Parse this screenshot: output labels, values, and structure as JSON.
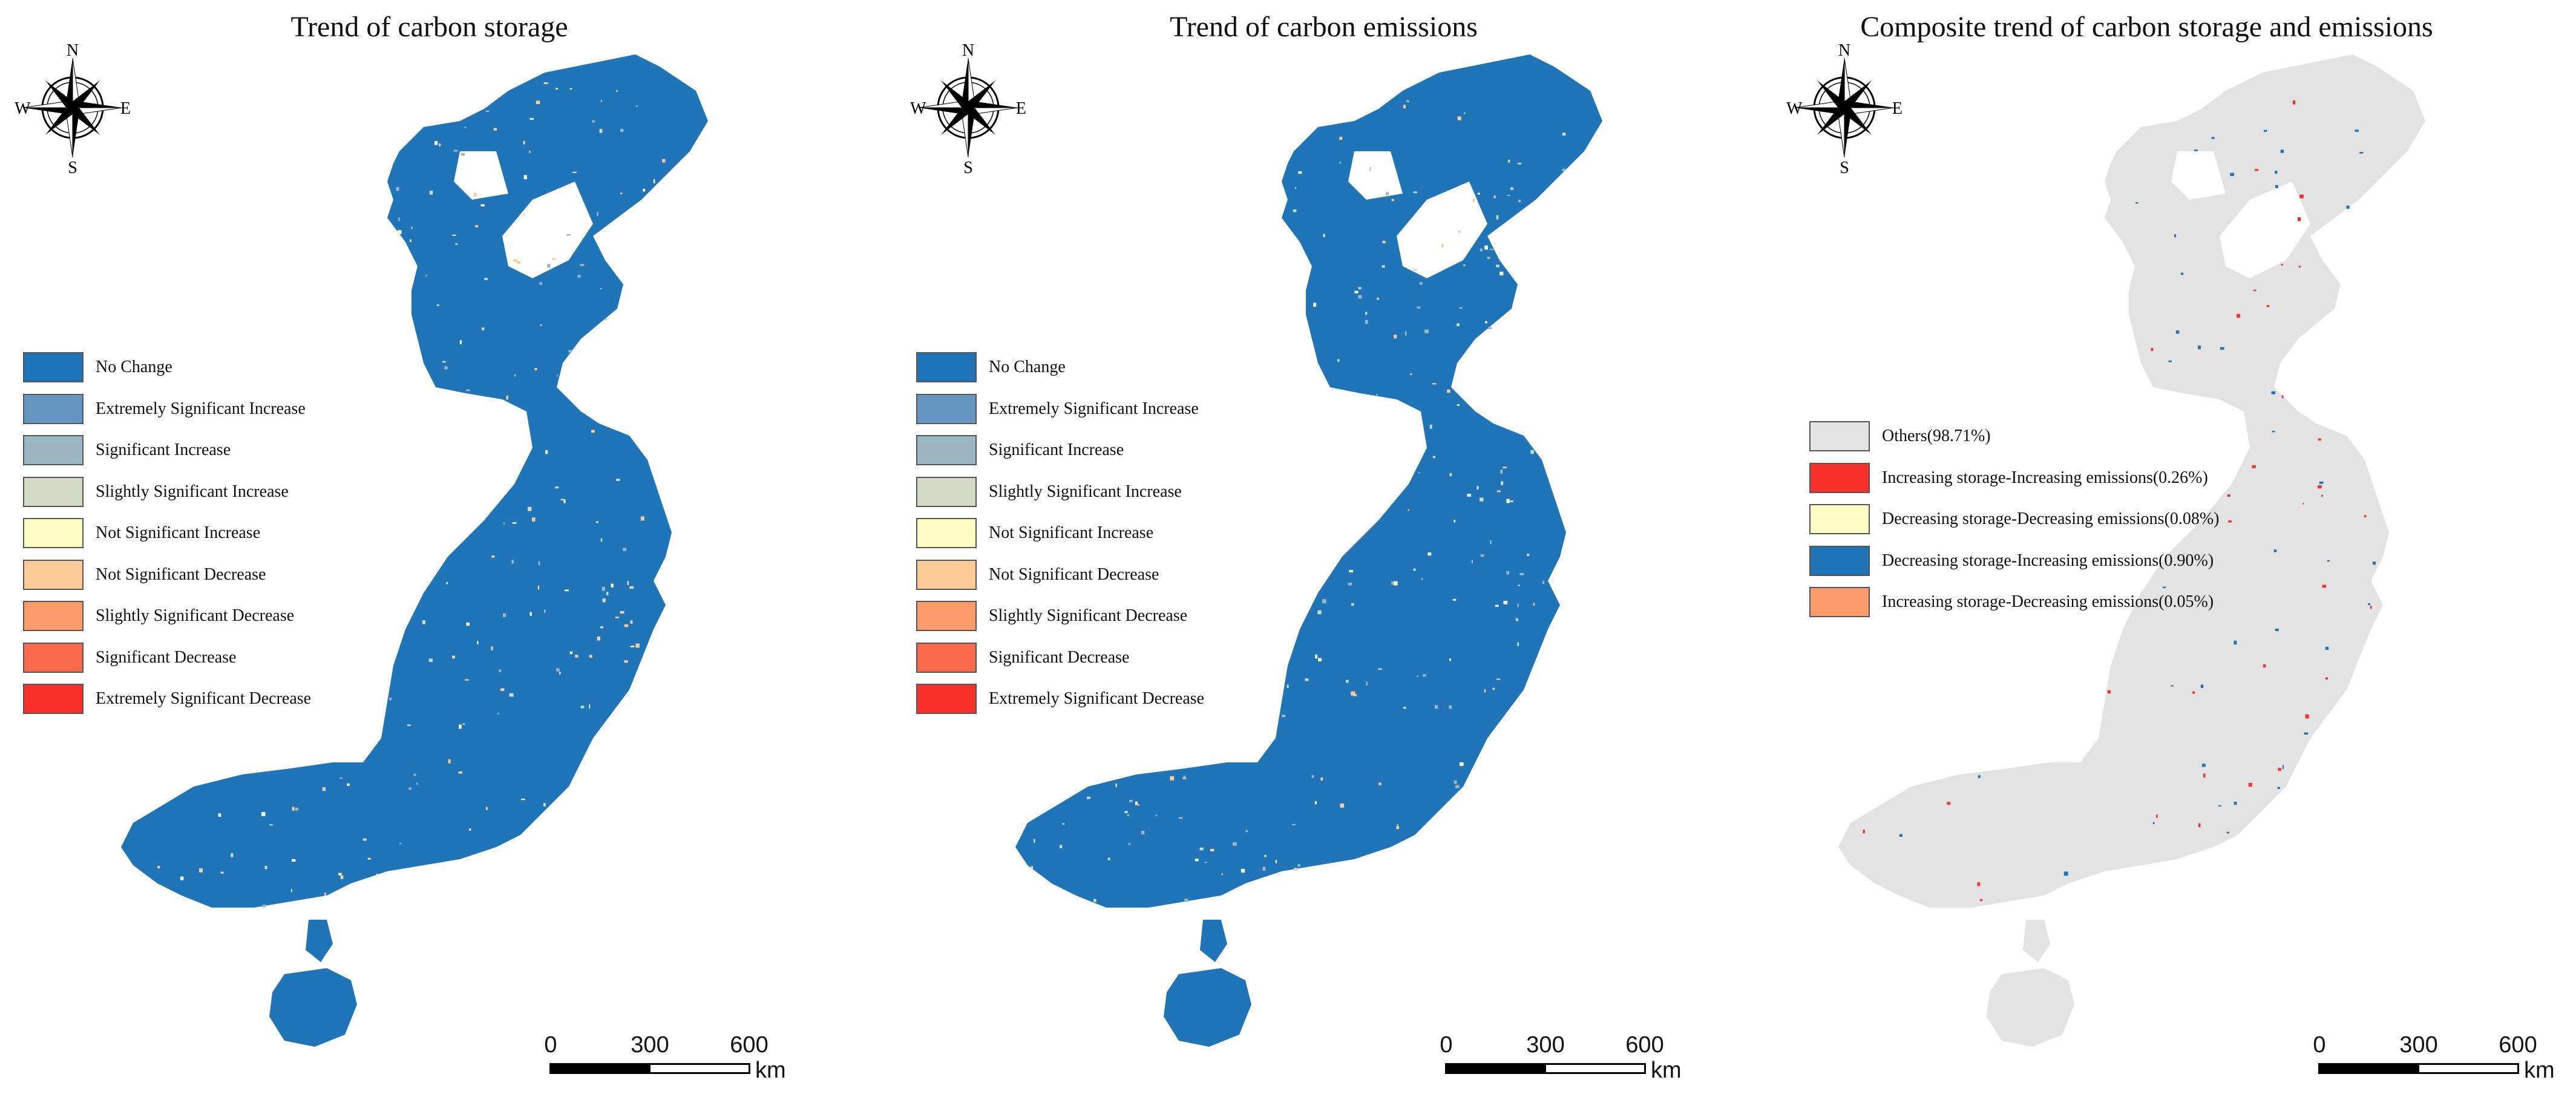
{
  "panels": [
    {
      "title": "Trend of carbon storage",
      "map_fill": "#1f75b8",
      "legend": [
        {
          "label": "No Change",
          "color": "#1f75b8"
        },
        {
          "label": "Extremely Significant Increase",
          "color": "#6697c2"
        },
        {
          "label": "Significant Increase",
          "color": "#9db6c4"
        },
        {
          "label": "Slightly Significant Increase",
          "color": "#d2dac4"
        },
        {
          "label": "Not Significant Increase",
          "color": "#fdfdc4"
        },
        {
          "label": "Not Significant Decrease",
          "color": "#fdcb97"
        },
        {
          "label": "Slightly Significant Decrease",
          "color": "#fc9c6a"
        },
        {
          "label": "Significant Decrease",
          "color": "#fb6a4a"
        },
        {
          "label": "Extremely Significant Decrease",
          "color": "#f8312a"
        }
      ]
    },
    {
      "title": "Trend of carbon emissions",
      "map_fill": "#1f75b8",
      "legend": [
        {
          "label": "No Change",
          "color": "#1f75b8"
        },
        {
          "label": "Extremely Significant Increase",
          "color": "#6697c2"
        },
        {
          "label": "Significant Increase",
          "color": "#9db6c4"
        },
        {
          "label": "Slightly Significant Increase",
          "color": "#d2dac4"
        },
        {
          "label": "Not Significant Increase",
          "color": "#fdfdc4"
        },
        {
          "label": "Not Significant Decrease",
          "color": "#fdcb97"
        },
        {
          "label": "Slightly Significant Decrease",
          "color": "#fc9c6a"
        },
        {
          "label": "Significant Decrease",
          "color": "#fb6a4a"
        },
        {
          "label": "Extremely Significant Decrease",
          "color": "#f8312a"
        }
      ]
    },
    {
      "title": "Composite trend of carbon storage and emissions",
      "map_fill": "#e3e3e3",
      "legend": [
        {
          "label": "Others(98.71%)",
          "color": "#e3e3e3"
        },
        {
          "label": "Increasing storage-Increasing emissions(0.26%)",
          "color": "#f8312a"
        },
        {
          "label": "Decreasing storage-Decreasing emissions(0.08%)",
          "color": "#fdfdc4"
        },
        {
          "label": "Decreasing storage-Increasing emissions(0.90%)",
          "color": "#1f75b8"
        },
        {
          "label": "Increasing storage-Decreasing emissions(0.05%)",
          "color": "#fc9c6a"
        }
      ]
    }
  ],
  "compass": {
    "n": "N",
    "s": "S",
    "e": "E",
    "w": "W"
  },
  "scalebar": {
    "ticks": [
      "0",
      "300",
      "600"
    ],
    "unit": "km"
  }
}
